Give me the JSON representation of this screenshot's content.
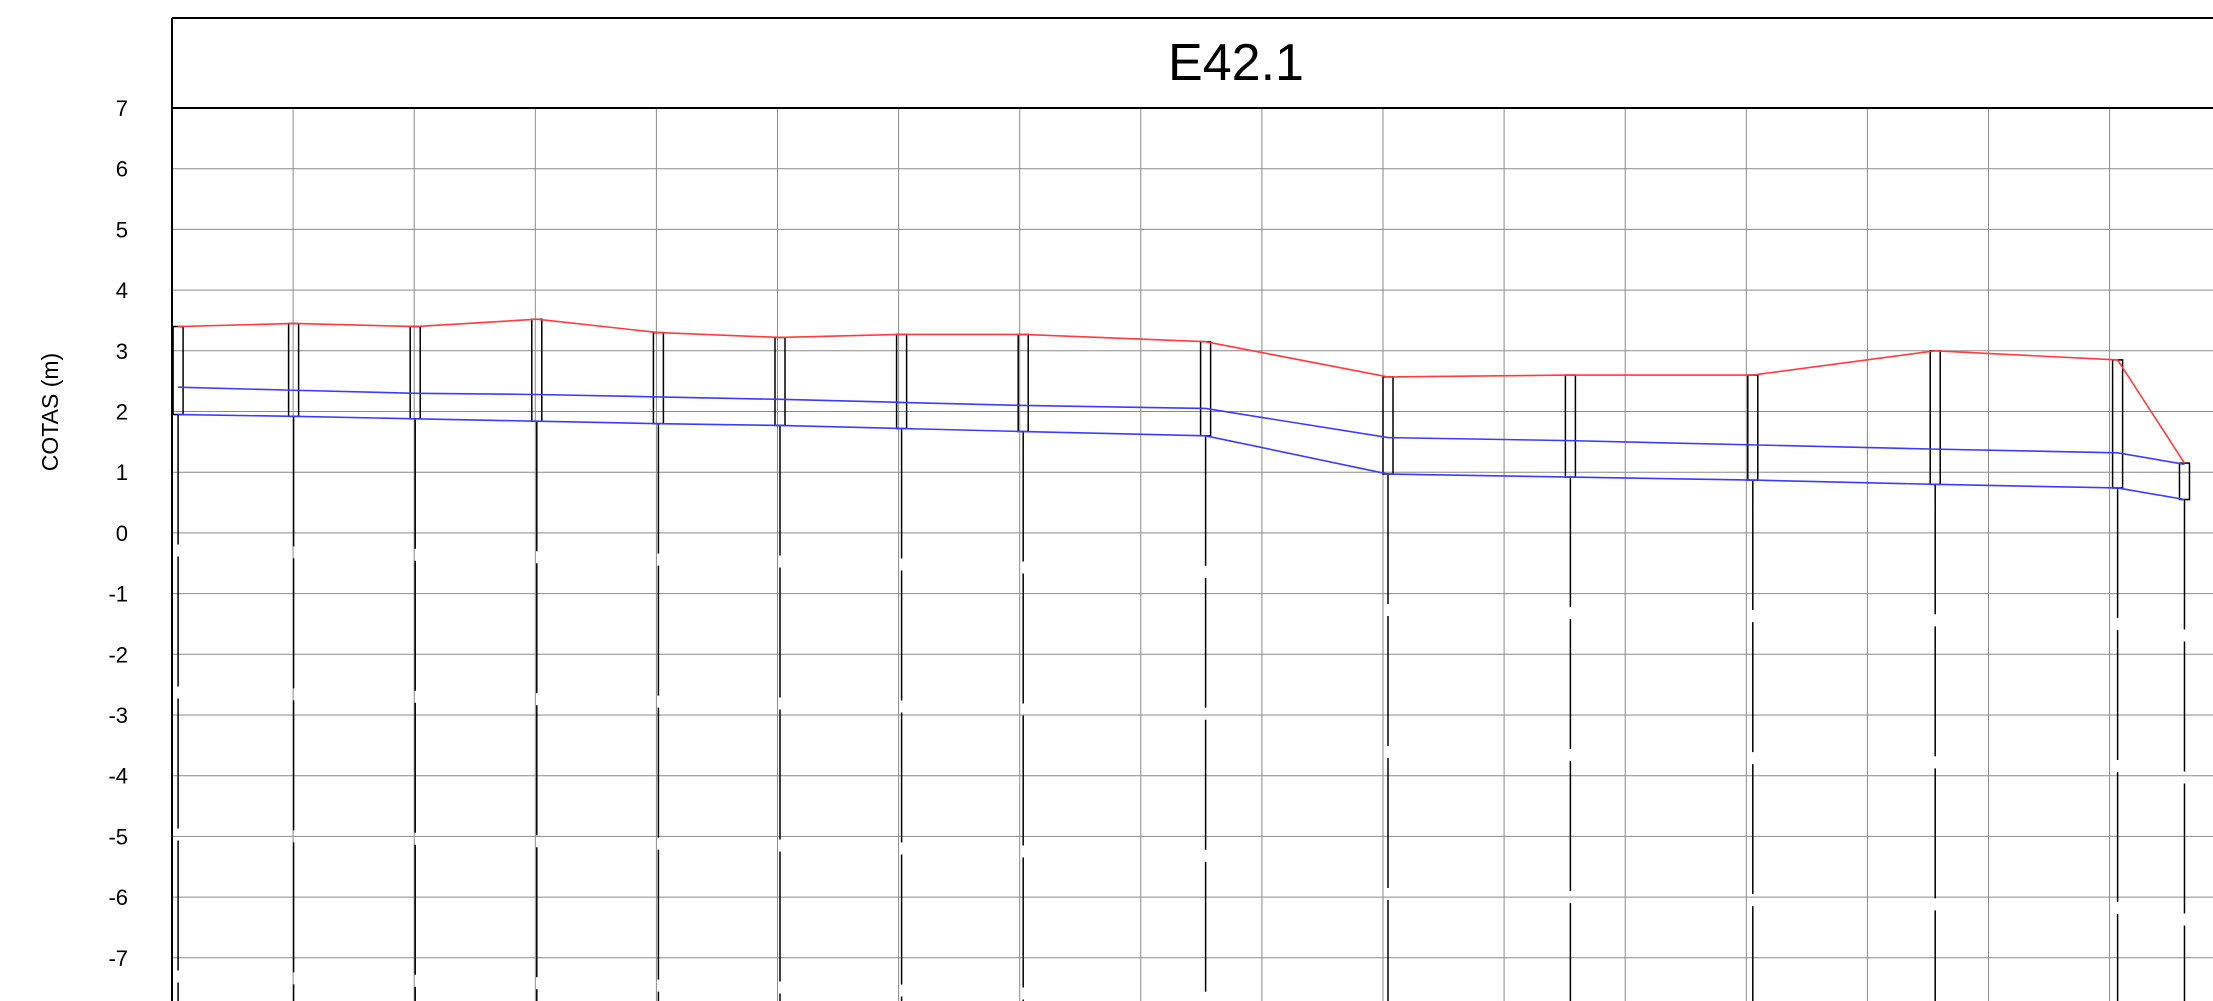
{
  "chart_data": {
    "type": "line",
    "title": "E42.1",
    "xlabel": "",
    "ylabel": "COTAS (m)",
    "ylim": [
      -7,
      7
    ],
    "y_ticks": [
      "7",
      "6",
      "5",
      "4",
      "3",
      "2",
      "1",
      "0",
      "-1",
      "-2",
      "-3",
      "-4",
      "-5",
      "-6",
      "-7"
    ],
    "grid": true,
    "x_grid_lines": 17,
    "colors": {
      "terrain": "#ff3b3b",
      "layer": "#3b3bff",
      "frame": "#000000",
      "grid": "#8a8a8a"
    },
    "x": [
      0.1,
      2,
      4,
      6,
      8,
      10,
      12,
      14,
      17,
      20,
      23,
      26,
      29,
      32,
      33.1
    ],
    "series": [
      {
        "name": "",
        "color": "#ff3b3b",
        "values": [
          3.4,
          3.45,
          3.4,
          3.52,
          3.3,
          3.22,
          3.27,
          3.27,
          3.15,
          2.57,
          2.6,
          2.6,
          3.0,
          2.85,
          1.15
        ]
      },
      {
        "name": "",
        "color": "#3b3bff",
        "values": [
          2.4,
          2.35,
          2.3,
          2.28,
          2.24,
          2.2,
          2.15,
          2.1,
          2.05,
          1.57,
          1.52,
          1.45,
          1.38,
          1.32,
          1.13
        ]
      },
      {
        "name": "",
        "color": "#3b3bff",
        "values": [
          1.95,
          1.92,
          1.88,
          1.84,
          1.8,
          1.77,
          1.72,
          1.67,
          1.6,
          0.97,
          0.92,
          0.87,
          0.8,
          0.74,
          0.55
        ]
      }
    ]
  }
}
